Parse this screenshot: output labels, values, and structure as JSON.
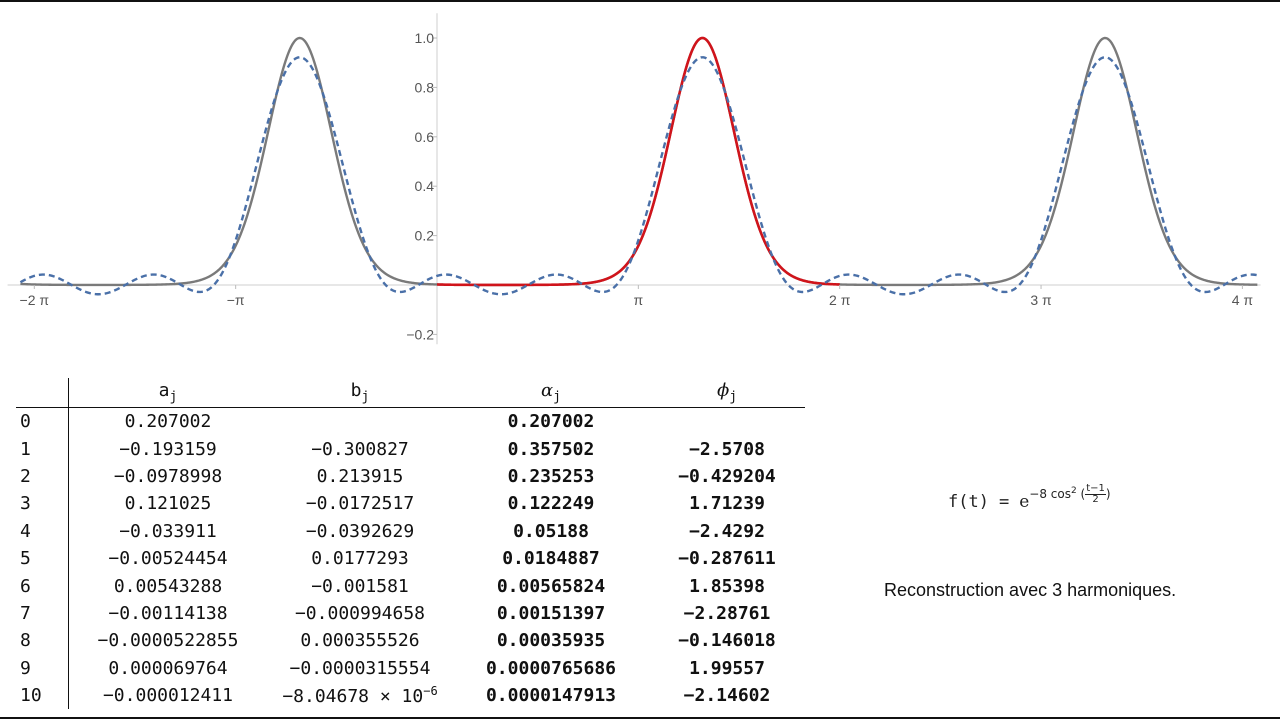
{
  "chart_data": {
    "type": "line",
    "function": "exp(-8 cos^2((t-1)/2))",
    "harmonics": 3,
    "x_ticks": [
      "−2 π",
      "−π",
      "π",
      "2 π",
      "3 π",
      "4 π"
    ],
    "x_tick_values": [
      -6.2832,
      -3.1416,
      3.1416,
      6.2832,
      9.4248,
      12.5664
    ],
    "y_ticks": [
      "−0.2",
      "0.2",
      "0.4",
      "0.6",
      "0.8",
      "1.0"
    ],
    "y_tick_values": [
      -0.2,
      0.2,
      0.4,
      0.6,
      0.8,
      1.0
    ],
    "xlim": [
      -6.7,
      12.85
    ],
    "ylim": [
      -0.24,
      1.1
    ],
    "series": [
      {
        "role": "periodic-extension",
        "color": "#7a7a7a",
        "style": "solid",
        "domain": [
          -6.5,
          12.8
        ]
      },
      {
        "role": "one-period",
        "color": "#d0141b",
        "style": "solid",
        "domain": [
          0,
          6.2832
        ]
      },
      {
        "role": "reconstruction",
        "color": "#4a70a8",
        "style": "dashed",
        "domain": [
          -6.5,
          12.8
        ]
      }
    ]
  },
  "table": {
    "headers": {
      "j": "",
      "a": {
        "sym": "a",
        "sub": "j"
      },
      "b": {
        "sym": "b",
        "sub": "j"
      },
      "alpha": {
        "sym": "α",
        "sub": "j"
      },
      "phi": {
        "sym": "ϕ",
        "sub": "j"
      }
    },
    "rows": [
      {
        "j": "0",
        "a": "0.207002",
        "b": "",
        "alpha": "0.207002",
        "phi": ""
      },
      {
        "j": "1",
        "a": "−0.193159",
        "b": "−0.300827",
        "alpha": "0.357502",
        "phi": "−2.5708"
      },
      {
        "j": "2",
        "a": "−0.0978998",
        "b": "0.213915",
        "alpha": "0.235253",
        "phi": "−0.429204"
      },
      {
        "j": "3",
        "a": "0.121025",
        "b": "−0.0172517",
        "alpha": "0.122249",
        "phi": "1.71239"
      },
      {
        "j": "4",
        "a": "−0.033911",
        "b": "−0.0392629",
        "alpha": "0.05188",
        "phi": "−2.4292"
      },
      {
        "j": "5",
        "a": "−0.00524454",
        "b": "0.0177293",
        "alpha": "0.0184887",
        "phi": "−0.287611"
      },
      {
        "j": "6",
        "a": "0.00543288",
        "b": "−0.001581",
        "alpha": "0.00565824",
        "phi": "1.85398"
      },
      {
        "j": "7",
        "a": "−0.00114138",
        "b": "−0.000994658",
        "alpha": "0.00151397",
        "phi": "−2.28761"
      },
      {
        "j": "8",
        "a": "−0.0000522855",
        "b": "0.000355526",
        "alpha": "0.00035935",
        "phi": "−0.146018"
      },
      {
        "j": "9",
        "a": "0.000069764",
        "b": "−0.0000315554",
        "alpha": "0.0000765686",
        "phi": "1.99557"
      },
      {
        "j": "10",
        "a": "−0.000012411",
        "b": "−8.04678 × 10",
        "b_exp": "−6",
        "alpha": "0.0000147913",
        "phi": "−2.14602"
      }
    ]
  },
  "formula": {
    "lhs": "f(t)",
    "eq": "=",
    "base": "e",
    "exponent": "−8 cos",
    "power": "2",
    "open": "(",
    "num": "t−1",
    "den": "2",
    "close": ")"
  },
  "caption": "Reconstruction avec 3 harmoniques."
}
